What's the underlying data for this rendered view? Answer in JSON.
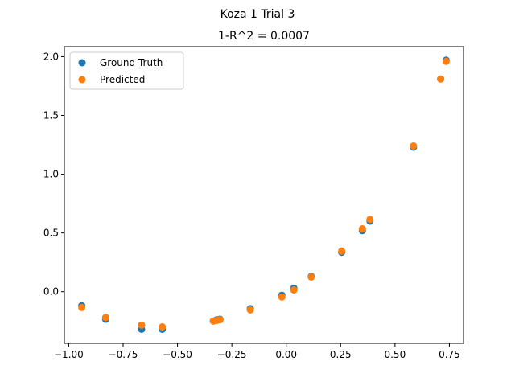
{
  "figure": {
    "suptitle": "Koza 1 Trial 3"
  },
  "chart_data": {
    "type": "scatter",
    "title": "1-R^2 = 0.0007",
    "xlabel": "",
    "ylabel": "",
    "xlim": [
      -1.02,
      0.815
    ],
    "ylim": [
      -0.44,
      2.085
    ],
    "x_ticks": [
      -1.0,
      -0.75,
      -0.5,
      -0.25,
      0.0,
      0.25,
      0.5,
      0.75
    ],
    "x_tick_labels": [
      "−1.00",
      "−0.75",
      "−0.50",
      "−0.25",
      "0.00",
      "0.25",
      "0.50",
      "0.75"
    ],
    "y_ticks": [
      0.0,
      0.5,
      1.0,
      1.5,
      2.0
    ],
    "y_tick_labels": [
      "0.0",
      "0.5",
      "1.0",
      "1.5",
      "2.0"
    ],
    "grid": false,
    "legend": {
      "position": "upper-left"
    },
    "series": [
      {
        "name": "Ground Truth",
        "color": "#1f77b4",
        "points": [
          {
            "x": -0.94,
            "y": -0.12
          },
          {
            "x": -0.83,
            "y": -0.235
          },
          {
            "x": -0.665,
            "y": -0.32
          },
          {
            "x": -0.57,
            "y": -0.32
          },
          {
            "x": -0.335,
            "y": -0.25
          },
          {
            "x": -0.32,
            "y": -0.24
          },
          {
            "x": -0.305,
            "y": -0.235
          },
          {
            "x": -0.165,
            "y": -0.145
          },
          {
            "x": -0.02,
            "y": -0.03
          },
          {
            "x": 0.035,
            "y": 0.03
          },
          {
            "x": 0.115,
            "y": 0.13
          },
          {
            "x": 0.255,
            "y": 0.335
          },
          {
            "x": 0.35,
            "y": 0.52
          },
          {
            "x": 0.385,
            "y": 0.6
          },
          {
            "x": 0.585,
            "y": 1.23
          },
          {
            "x": 0.71,
            "y": 1.81
          },
          {
            "x": 0.735,
            "y": 1.97
          }
        ]
      },
      {
        "name": "Predicted",
        "color": "#ff7f0e",
        "points": [
          {
            "x": -0.94,
            "y": -0.135
          },
          {
            "x": -0.83,
            "y": -0.22
          },
          {
            "x": -0.665,
            "y": -0.285
          },
          {
            "x": -0.57,
            "y": -0.3
          },
          {
            "x": -0.335,
            "y": -0.25
          },
          {
            "x": -0.32,
            "y": -0.245
          },
          {
            "x": -0.305,
            "y": -0.24
          },
          {
            "x": -0.165,
            "y": -0.155
          },
          {
            "x": -0.02,
            "y": -0.045
          },
          {
            "x": 0.035,
            "y": 0.015
          },
          {
            "x": 0.115,
            "y": 0.125
          },
          {
            "x": 0.255,
            "y": 0.345
          },
          {
            "x": 0.35,
            "y": 0.535
          },
          {
            "x": 0.385,
            "y": 0.615
          },
          {
            "x": 0.585,
            "y": 1.24
          },
          {
            "x": 0.71,
            "y": 1.81
          },
          {
            "x": 0.735,
            "y": 1.96
          }
        ]
      }
    ]
  }
}
